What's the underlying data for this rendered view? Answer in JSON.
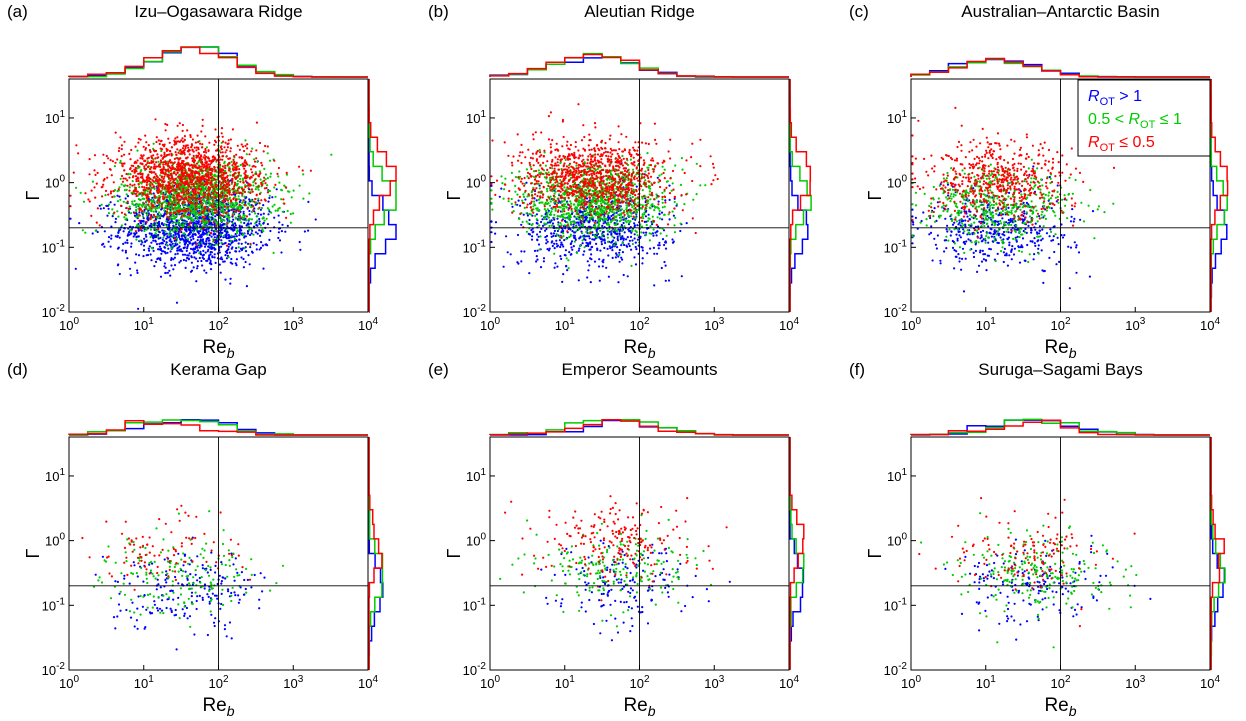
{
  "colors": {
    "r_ot_gt_1": "#0000ff",
    "r_ot_mid": "#00cc00",
    "r_ot_le_05": "#ff0000",
    "axes": "#000000"
  },
  "legend": {
    "location": "top-right of panel (c)",
    "entries": [
      {
        "series": "r_ot_gt_1",
        "color": "#0000ff",
        "prefix": "R",
        "sub": "OT",
        "suffix": " > 1"
      },
      {
        "series": "r_ot_mid",
        "color": "#00cc00",
        "prefix": "0.5 < R",
        "sub": "OT",
        "suffix": " ≤ 1"
      },
      {
        "series": "r_ot_le_05",
        "color": "#ff0000",
        "prefix": "R",
        "sub": "OT",
        "suffix": " ≤ 0.5"
      }
    ]
  },
  "chart_data": [
    {
      "type": "scatter",
      "panel": "(a)",
      "title": "Izu–Ogasawara Ridge",
      "xlabel": "Re",
      "xlabel_sub": "b",
      "ylabel": "Γ",
      "xscale": "log",
      "yscale": "log",
      "xlim": [
        1,
        10000
      ],
      "ylim": [
        0.01,
        40
      ],
      "reference_lines": {
        "x": 100,
        "y": 0.2
      },
      "xticks": [
        "10^0",
        "10^1",
        "10^2",
        "10^3",
        "10^4"
      ],
      "yticks": [
        "10^-2",
        "10^-1",
        "10^0",
        "10^1"
      ],
      "marginal_histograms": "top (Re_b) and right (Γ), one step line per series",
      "series": [
        {
          "name": "R_OT > 1",
          "color": "#0000ff",
          "approx_points": 2600,
          "median_Re_b": 50,
          "median_Gamma": 0.2
        },
        {
          "name": "0.5 < R_OT ≤ 1",
          "color": "#00cc00",
          "approx_points": 3000,
          "median_Re_b": 50,
          "median_Gamma": 0.6
        },
        {
          "name": "R_OT ≤ 0.5",
          "color": "#ff0000",
          "approx_points": 2800,
          "median_Re_b": 40,
          "median_Gamma": 1.2
        }
      ]
    },
    {
      "type": "scatter",
      "panel": "(b)",
      "title": "Aleutian Ridge",
      "xlabel": "Re",
      "xlabel_sub": "b",
      "ylabel": "Γ",
      "xscale": "log",
      "yscale": "log",
      "xlim": [
        1,
        10000
      ],
      "ylim": [
        0.01,
        40
      ],
      "reference_lines": {
        "x": 100,
        "y": 0.2
      },
      "xticks": [
        "10^0",
        "10^1",
        "10^2",
        "10^3",
        "10^4"
      ],
      "yticks": [
        "10^-2",
        "10^-1",
        "10^0",
        "10^1"
      ],
      "marginal_histograms": "top (Re_b) and right (Γ), one step line per series",
      "series": [
        {
          "name": "R_OT > 1",
          "color": "#0000ff",
          "approx_points": 700,
          "median_Re_b": 25,
          "median_Gamma": 0.2
        },
        {
          "name": "0.5 < R_OT ≤ 1",
          "color": "#00cc00",
          "approx_points": 1100,
          "median_Re_b": 25,
          "median_Gamma": 0.55
        },
        {
          "name": "R_OT ≤ 0.5",
          "color": "#ff0000",
          "approx_points": 1000,
          "median_Re_b": 25,
          "median_Gamma": 1.2
        }
      ]
    },
    {
      "type": "scatter",
      "panel": "(c)",
      "title": "Australian–Antarctic Basin",
      "xlabel": "Re",
      "xlabel_sub": "b",
      "ylabel": "Γ",
      "xscale": "log",
      "yscale": "log",
      "xlim": [
        1,
        10000
      ],
      "ylim": [
        0.01,
        40
      ],
      "reference_lines": {
        "x": 100,
        "y": 0.2
      },
      "xticks": [
        "10^0",
        "10^1",
        "10^2",
        "10^3",
        "10^4"
      ],
      "yticks": [
        "10^-2",
        "10^-1",
        "10^0",
        "10^1"
      ],
      "marginal_histograms": "top (Re_b) and right (Γ), one step line per series",
      "series": [
        {
          "name": "R_OT > 1",
          "color": "#0000ff",
          "approx_points": 450,
          "median_Re_b": 15,
          "median_Gamma": 0.2
        },
        {
          "name": "0.5 < R_OT ≤ 1",
          "color": "#00cc00",
          "approx_points": 500,
          "median_Re_b": 15,
          "median_Gamma": 0.45
        },
        {
          "name": "R_OT ≤ 0.5",
          "color": "#ff0000",
          "approx_points": 550,
          "median_Re_b": 15,
          "median_Gamma": 1.0
        }
      ]
    },
    {
      "type": "scatter",
      "panel": "(d)",
      "title": "Kerama Gap",
      "xlabel": "Re",
      "xlabel_sub": "b",
      "ylabel": "Γ",
      "xscale": "log",
      "yscale": "log",
      "xlim": [
        1,
        10000
      ],
      "ylim": [
        0.01,
        40
      ],
      "reference_lines": {
        "x": 100,
        "y": 0.2
      },
      "xticks": [
        "10^0",
        "10^1",
        "10^2",
        "10^3",
        "10^4"
      ],
      "yticks": [
        "10^-2",
        "10^-1",
        "10^0",
        "10^1"
      ],
      "marginal_histograms": "top (Re_b) and right (Γ), one step line per series",
      "series": [
        {
          "name": "R_OT > 1",
          "color": "#0000ff",
          "approx_points": 200,
          "median_Re_b": 40,
          "median_Gamma": 0.17
        },
        {
          "name": "0.5 < R_OT ≤ 1",
          "color": "#00cc00",
          "approx_points": 170,
          "median_Re_b": 30,
          "median_Gamma": 0.3
        },
        {
          "name": "R_OT ≤ 0.5",
          "color": "#ff0000",
          "approx_points": 90,
          "median_Re_b": 20,
          "median_Gamma": 0.7
        }
      ]
    },
    {
      "type": "scatter",
      "panel": "(e)",
      "title": "Emperor Seamounts",
      "xlabel": "Re",
      "xlabel_sub": "b",
      "ylabel": "Γ",
      "xscale": "log",
      "yscale": "log",
      "xlim": [
        1,
        10000
      ],
      "ylim": [
        0.01,
        40
      ],
      "reference_lines": {
        "x": 100,
        "y": 0.2
      },
      "xticks": [
        "10^0",
        "10^1",
        "10^2",
        "10^3",
        "10^4"
      ],
      "yticks": [
        "10^-2",
        "10^-1",
        "10^0",
        "10^1"
      ],
      "marginal_histograms": "top (Re_b) and right (Γ), one step line per series",
      "series": [
        {
          "name": "R_OT > 1",
          "color": "#0000ff",
          "approx_points": 160,
          "median_Re_b": 60,
          "median_Gamma": 0.2
        },
        {
          "name": "0.5 < R_OT ≤ 1",
          "color": "#00cc00",
          "approx_points": 200,
          "median_Re_b": 50,
          "median_Gamma": 0.4
        },
        {
          "name": "R_OT ≤ 0.5",
          "color": "#ff0000",
          "approx_points": 200,
          "median_Re_b": 50,
          "median_Gamma": 1.0
        }
      ]
    },
    {
      "type": "scatter",
      "panel": "(f)",
      "title": "Suruga–Sagami Bays",
      "xlabel": "Re",
      "xlabel_sub": "b",
      "ylabel": "Γ",
      "xscale": "log",
      "yscale": "log",
      "xlim": [
        1,
        10000
      ],
      "ylim": [
        0.01,
        40
      ],
      "reference_lines": {
        "x": 100,
        "y": 0.2
      },
      "xticks": [
        "10^0",
        "10^1",
        "10^2",
        "10^3",
        "10^4"
      ],
      "yticks": [
        "10^-2",
        "10^-1",
        "10^0",
        "10^1"
      ],
      "marginal_histograms": "top (Re_b) and right (Γ), one step line per series",
      "series": [
        {
          "name": "R_OT > 1",
          "color": "#0000ff",
          "approx_points": 160,
          "median_Re_b": 50,
          "median_Gamma": 0.2
        },
        {
          "name": "0.5 < R_OT ≤ 1",
          "color": "#00cc00",
          "approx_points": 230,
          "median_Re_b": 50,
          "median_Gamma": 0.35
        },
        {
          "name": "R_OT ≤ 0.5",
          "color": "#ff0000",
          "approx_points": 130,
          "median_Re_b": 40,
          "median_Gamma": 0.6
        }
      ]
    }
  ]
}
